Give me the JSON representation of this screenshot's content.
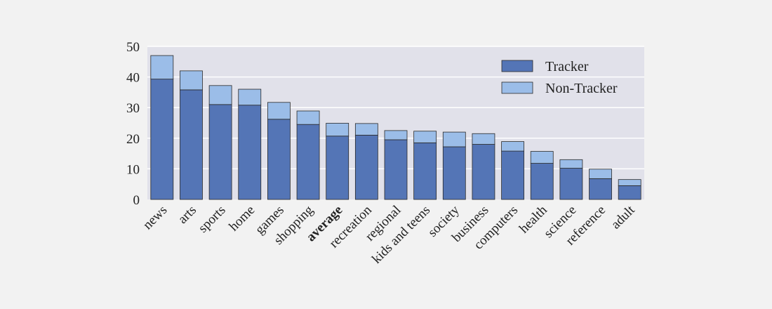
{
  "chart_data": {
    "type": "bar",
    "stacked": true,
    "categories": [
      "news",
      "arts",
      "sports",
      "home",
      "games",
      "shopping",
      "average",
      "recreation",
      "regional",
      "kids and teens",
      "society",
      "business",
      "computers",
      "health",
      "science",
      "reference",
      "adult"
    ],
    "emphasized_category": "average",
    "series": [
      {
        "name": "Tracker",
        "color": "#5475b6",
        "values": [
          39.3,
          35.8,
          31.0,
          30.8,
          26.2,
          24.5,
          20.7,
          21.0,
          19.5,
          18.5,
          17.2,
          18.0,
          15.8,
          11.8,
          10.2,
          6.8,
          4.5
        ]
      },
      {
        "name": "Non-Tracker",
        "color": "#9bbde8",
        "values": [
          7.7,
          6.2,
          6.2,
          5.2,
          5.5,
          4.4,
          4.2,
          3.8,
          3.0,
          3.8,
          4.8,
          3.5,
          3.1,
          3.9,
          2.8,
          3.1,
          2.0
        ]
      }
    ],
    "ylim": [
      0,
      50
    ],
    "yticks": [
      "0",
      "10",
      "20",
      "30",
      "40",
      "50"
    ],
    "xlabel": "",
    "ylabel": "",
    "grid": "horizontal",
    "legend_position": "top-right",
    "plot_background": "#e1e1ea"
  }
}
